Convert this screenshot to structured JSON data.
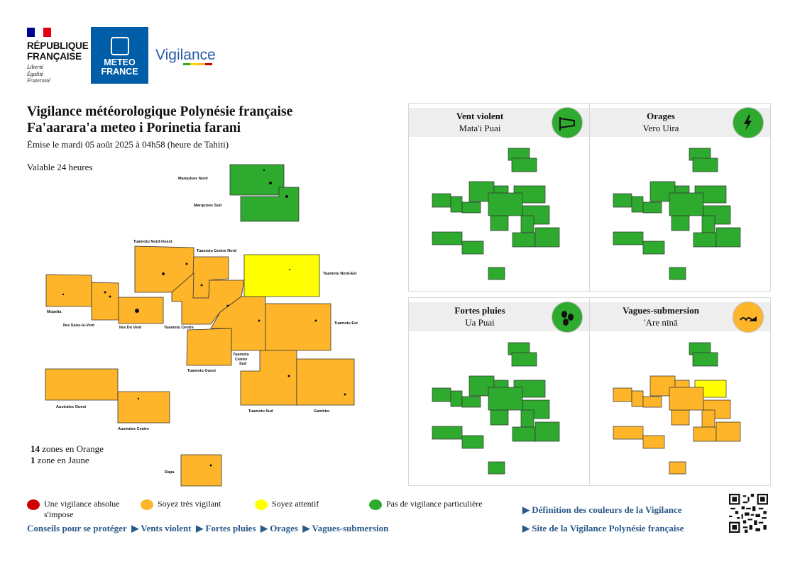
{
  "header": {
    "republic_name_line1": "RÉPUBLIQUE",
    "republic_name_line2": "FRANÇAISE",
    "motto": [
      "Liberté",
      "Égalité",
      "Fraternité"
    ],
    "meteo_line1": "METEO",
    "meteo_line2": "FRANCE",
    "vigilance_wordmark": "Vigilance"
  },
  "title": {
    "line1": "Vigilance météorologique Polynésie française",
    "line2": "Fa'aarara'a meteo i Porinetia farani",
    "issued": "Émise le mardi 05 août 2025 à 04h58 (heure de Tahiti)",
    "valid": "Valable 24 heures"
  },
  "colors": {
    "green": "#2eaa2e",
    "orange": "#feb52a",
    "yellow": "#ffff00",
    "red": "#cc0000",
    "link": "#2a5a8a"
  },
  "map": {
    "zones": [
      {
        "name": "Marquises Nord",
        "level": "green"
      },
      {
        "name": "Marquises Sud",
        "level": "green"
      },
      {
        "name": "Tuamotu Nord-Ouest",
        "level": "orange"
      },
      {
        "name": "Tuamotu Centre Nord",
        "level": "orange"
      },
      {
        "name": "Tuamotu Nord-Est",
        "level": "yellow"
      },
      {
        "name": "Mopelia",
        "level": "orange"
      },
      {
        "name": "Iles Sous-le-Vent",
        "level": "orange"
      },
      {
        "name": "Iles Du Vent",
        "level": "orange"
      },
      {
        "name": "Tuamotu Centre",
        "level": "orange"
      },
      {
        "name": "Tuamotu Est",
        "level": "orange"
      },
      {
        "name": "Tuamotu Ouest",
        "level": "orange"
      },
      {
        "name": "Tuamotu Centre Sud",
        "level": "orange"
      },
      {
        "name": "Australes Ouest",
        "level": "orange"
      },
      {
        "name": "Australes Centre",
        "level": "orange"
      },
      {
        "name": "Tuamotu Sud",
        "level": "orange"
      },
      {
        "name": "Gambier",
        "level": "orange"
      },
      {
        "name": "Rapa",
        "level": "orange"
      }
    ],
    "label_tuamotu_centre_sud": [
      "Tuamotu",
      "Centre",
      "Sud"
    ]
  },
  "summary": {
    "orange_count": "14",
    "orange_text": " zones en Orange",
    "yellow_count": "1",
    "yellow_text": " zone en Jaune"
  },
  "panels": [
    {
      "title": "Vent violent",
      "subtitle": "Mata'i Puai",
      "icon": "wind-sock-icon",
      "icon_color": "#2eaa2e"
    },
    {
      "title": "Orages",
      "subtitle": "Vero Uira",
      "icon": "lightning-icon",
      "icon_color": "#2eaa2e"
    },
    {
      "title": "Fortes pluies",
      "subtitle": "Ua Puai",
      "icon": "rain-drops-icon",
      "icon_color": "#2eaa2e"
    },
    {
      "title": "Vagues-submersion",
      "subtitle": "'Are nīnā",
      "icon": "waves-icon",
      "icon_color": "#feb52a"
    }
  ],
  "legend": [
    {
      "label": "Une vigilance absolue s'impose",
      "color": "#cc0000"
    },
    {
      "label": "Soyez très vigilant",
      "color": "#feb52a"
    },
    {
      "label": "Soyez attentif",
      "color": "#ffff00"
    },
    {
      "label": "Pas de vigilance particulière",
      "color": "#2eaa2e"
    }
  ],
  "links": {
    "conseils": "Conseils pour se protéger",
    "vents": "▶ Vents violent",
    "pluies": "▶ Fortes pluies",
    "orages": "▶ Orages",
    "vagues": "▶ Vagues-submersion",
    "definition": "▶ Définition des couleurs de la Vigilance",
    "site": "▶ Site de la Vigilance Polynésie française"
  }
}
